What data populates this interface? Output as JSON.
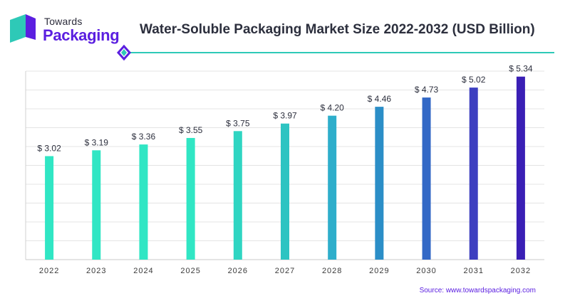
{
  "brand": {
    "line1": "Towards",
    "line2": "Packaging",
    "colors": {
      "mark_light": "#2ec9b7",
      "mark_dark": "#5b1fe0",
      "text": "#2b2b3a"
    }
  },
  "header": {
    "title": "Water-Soluble Packaging Market Size 2022-2032 (USD Billion)"
  },
  "chart_data": {
    "type": "bar",
    "title": "Water-Soluble Packaging Market Size 2022-2032 (USD Billion)",
    "categories": [
      "2022",
      "2023",
      "2024",
      "2025",
      "2026",
      "2027",
      "2028",
      "2029",
      "2030",
      "2031",
      "2032"
    ],
    "values": [
      3.02,
      3.19,
      3.36,
      3.55,
      3.75,
      3.97,
      4.2,
      4.46,
      4.73,
      5.02,
      5.34
    ],
    "value_labels": [
      "$ 3.02",
      "$ 3.19",
      "$ 3.36",
      "$ 3.55",
      "$ 3.75",
      "$ 3.97",
      "$ 4.20",
      "$ 4.46",
      "$ 4.73",
      "$ 5.02",
      "$ 5.34"
    ],
    "bar_colors": [
      "#30e6c4",
      "#30e6c4",
      "#30e6c4",
      "#30e6c4",
      "#2fd5c2",
      "#2ec4c2",
      "#2eaecb",
      "#2b8ec7",
      "#3268c6",
      "#3d3fc0",
      "#3a1fb5"
    ],
    "ylim": [
      0,
      5.5
    ],
    "grid": true,
    "xlabel": "",
    "ylabel": ""
  },
  "footer": {
    "source": "Source: www.towardspackaging.com"
  }
}
